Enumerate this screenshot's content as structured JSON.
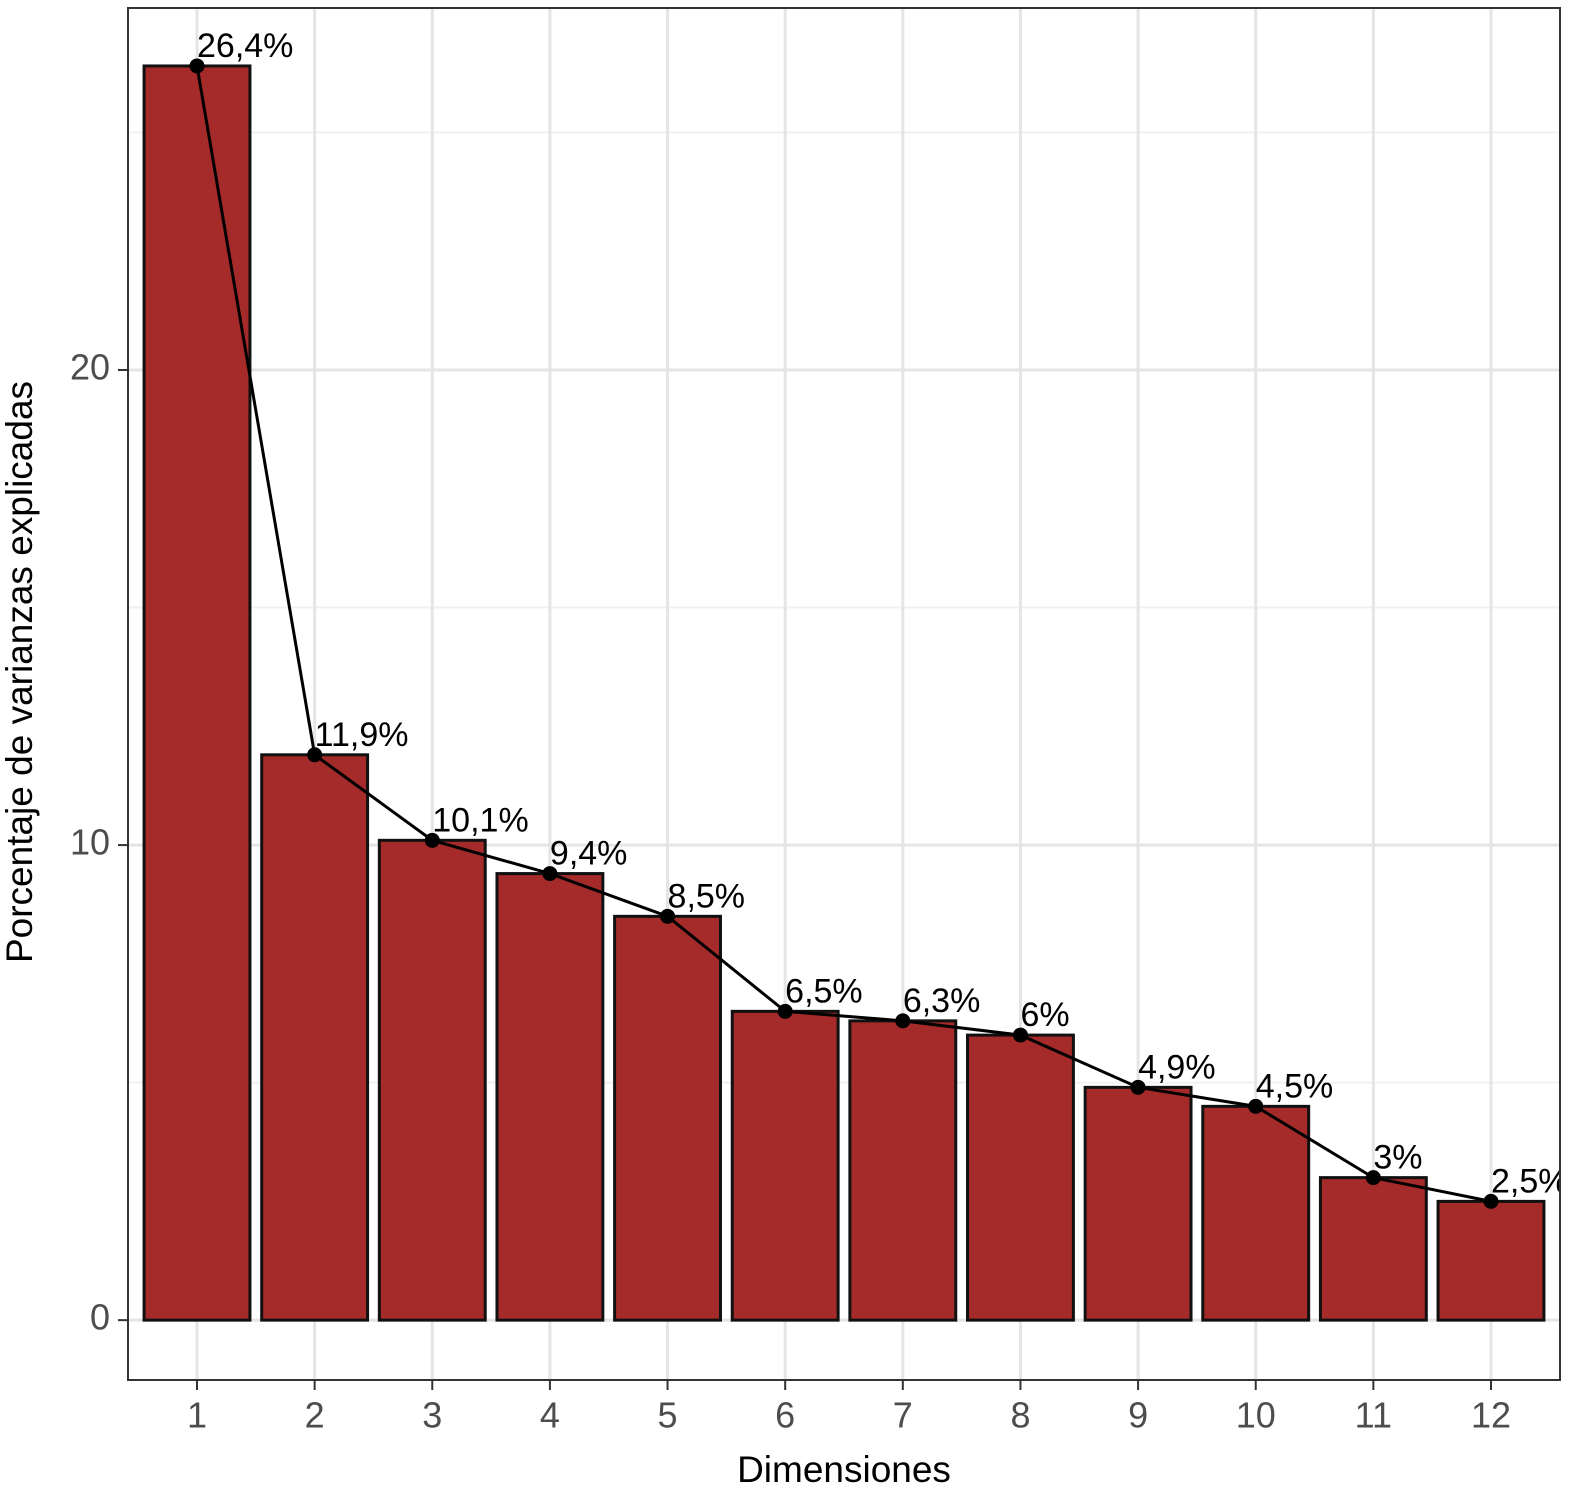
{
  "chart_data": {
    "type": "bar",
    "x_label": "Dimensiones",
    "y_label": "Porcentaje de varianzas explicadas",
    "categories": [
      "1",
      "2",
      "3",
      "4",
      "5",
      "6",
      "7",
      "8",
      "9",
      "10",
      "11",
      "12"
    ],
    "values": [
      26.4,
      11.9,
      10.1,
      9.4,
      8.5,
      6.5,
      6.3,
      6,
      4.9,
      4.5,
      3,
      2.5
    ],
    "value_labels": [
      "26,4%",
      "11,9%",
      "10,1%",
      "9,4%",
      "8,5%",
      "6,5%",
      "6,3%",
      "6%",
      "4,9%",
      "4,5%",
      "3%",
      "2,5%"
    ],
    "color": "#a52a2a",
    "line_color": "#000000",
    "ylim": [
      -1.26,
      27.62
    ],
    "yticks": [
      0,
      10,
      20
    ],
    "yminor": [
      5,
      15,
      25
    ],
    "grid": true
  }
}
